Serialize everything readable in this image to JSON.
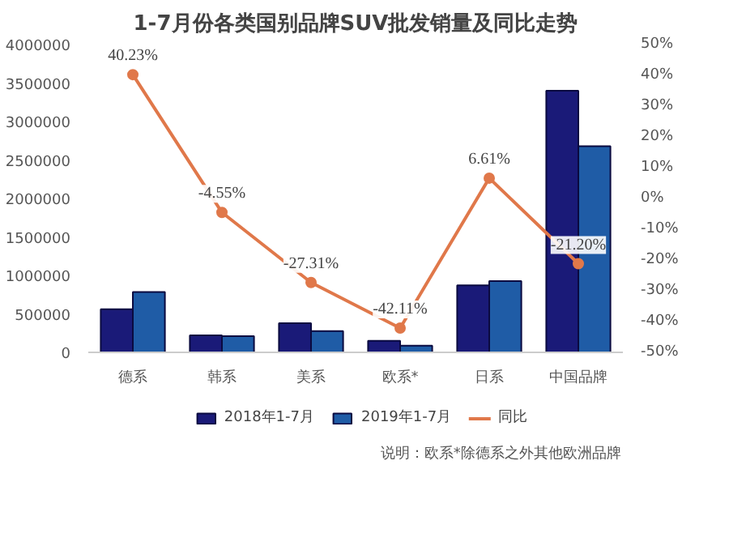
{
  "chart_data": {
    "type": "bar",
    "title": "1-7月份各类国别品牌SUV批发销量及同比走势",
    "categories": [
      "德系",
      "韩系",
      "美系",
      "欧系*",
      "日系",
      "中国品牌"
    ],
    "series": [
      {
        "name": "2018年1-7月",
        "color": "#1a1a78",
        "values": [
          560000,
          220000,
          380000,
          150000,
          870000,
          3400000
        ]
      },
      {
        "name": "2019年1-7月",
        "color": "#1f5ca6",
        "values": [
          785000,
          210000,
          276000,
          87000,
          927000,
          2680000
        ]
      },
      {
        "name": "同比",
        "type": "line",
        "axis": "y2",
        "color": "#e0784a",
        "marker": "circle",
        "values": [
          40.23,
          -4.55,
          -27.31,
          -42.11,
          6.61,
          -21.2
        ],
        "value_labels": [
          "40.23%",
          "-4.55%",
          "-27.31%",
          "-42.11%",
          "6.61%",
          "-21.20%"
        ]
      }
    ],
    "ylim": [
      0,
      4000000
    ],
    "yticks": [
      0,
      500000,
      1000000,
      1500000,
      2000000,
      2500000,
      3000000,
      3500000,
      4000000
    ],
    "y2lim": [
      -50,
      50
    ],
    "y2ticks": [
      {
        "value": -50,
        "label": "-50%"
      },
      {
        "value": -40,
        "label": "-40%"
      },
      {
        "value": -30,
        "label": "-30%"
      },
      {
        "value": -20,
        "label": "-20%"
      },
      {
        "value": -10,
        "label": "-10%"
      },
      {
        "value": 0,
        "label": "0%"
      },
      {
        "value": 10,
        "label": "10%"
      },
      {
        "value": 20,
        "label": "20%"
      },
      {
        "value": 30,
        "label": "30%"
      },
      {
        "value": 40,
        "label": "40%"
      },
      {
        "value": 50,
        "label": "50%"
      }
    ],
    "legend": "bottom",
    "grid": false,
    "annotations": [
      "说明：欧系*除德系之外其他欧洲品牌"
    ]
  }
}
